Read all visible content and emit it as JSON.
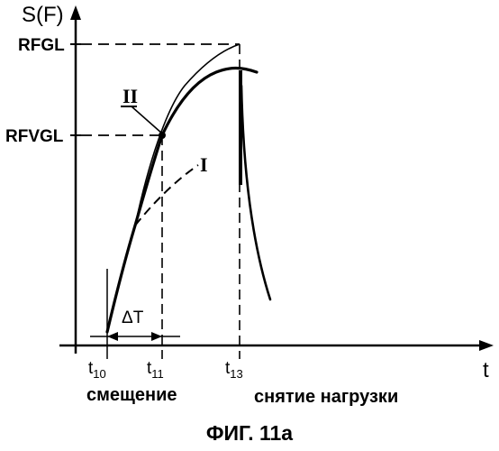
{
  "figure": {
    "y_axis_label": "S(F)",
    "x_axis_label": "t",
    "y_levels": [
      {
        "label": "RFGL"
      },
      {
        "label": "RFVGL"
      }
    ],
    "time_points": [
      {
        "base": "t",
        "sub": "10"
      },
      {
        "base": "t",
        "sub": "11"
      },
      {
        "base": "t",
        "sub": "13"
      }
    ],
    "interval_label": "ΔT",
    "curve_labels": {
      "upper": "II",
      "lower": "I"
    },
    "annotations": {
      "offset": "смещение",
      "unloading": "снятие нагрузки"
    },
    "caption": "ФИГ. 11а"
  }
}
